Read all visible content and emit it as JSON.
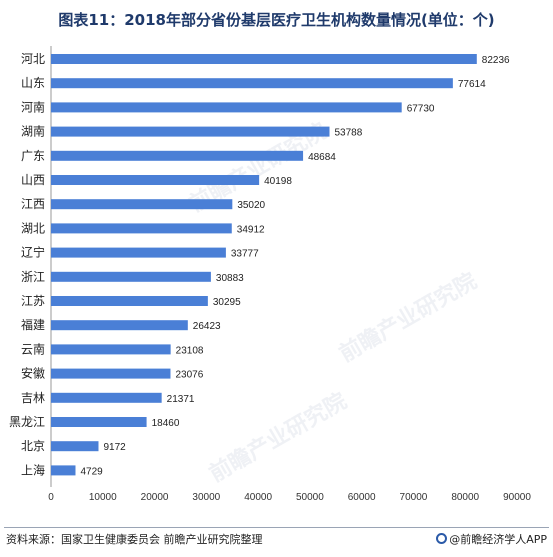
{
  "title": "图表11：2018年部分省份基层医疗卫生机构数量情况(单位：个)",
  "source": "资料来源：国家卫生健康委员会 前瞻产业研究院整理",
  "brand": "@前瞻经济学人APP",
  "watermark": "前瞻产业研究院",
  "colors": {
    "bar": "#4a7fd6",
    "axis": "#999999",
    "title": "#1f3a6b"
  },
  "chart_data": {
    "type": "bar",
    "orientation": "horizontal",
    "categories": [
      "河北",
      "山东",
      "河南",
      "湖南",
      "广东",
      "山西",
      "江西",
      "湖北",
      "辽宁",
      "浙江",
      "江苏",
      "福建",
      "云南",
      "安徽",
      "吉林",
      "黑龙江",
      "北京",
      "上海"
    ],
    "values": [
      82236,
      77614,
      67730,
      53788,
      48684,
      40198,
      35020,
      34912,
      33777,
      30883,
      30295,
      26423,
      23108,
      23076,
      21371,
      18460,
      9172,
      4729
    ],
    "title": "图表11：2018年部分省份基层医疗卫生机构数量情况(单位：个)",
    "xlim": [
      0,
      90000
    ],
    "xticks": [
      0,
      10000,
      20000,
      30000,
      40000,
      50000,
      60000,
      70000,
      80000,
      90000
    ],
    "xlabel": "",
    "ylabel": "",
    "grid": false,
    "data_labels": true
  }
}
